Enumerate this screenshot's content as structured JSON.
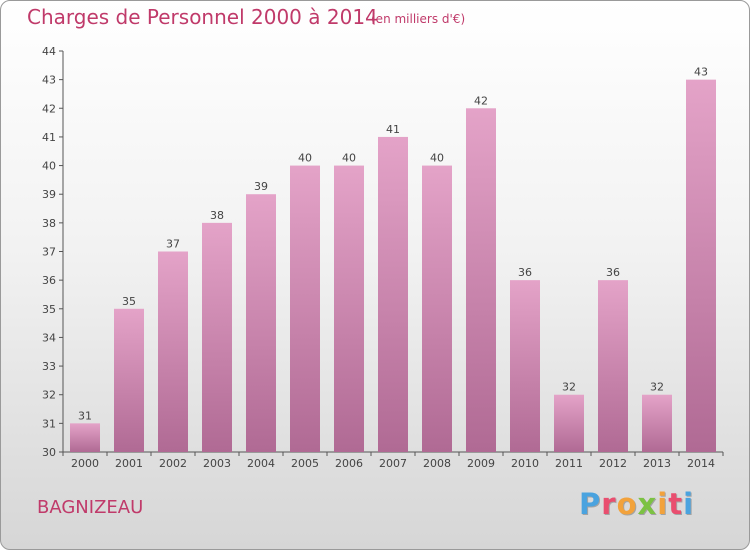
{
  "chart_data": {
    "type": "bar",
    "title": "Charges de Personnel 2000 à 2014",
    "subtitle": "(en milliers d'€)",
    "categories": [
      "2000",
      "2001",
      "2002",
      "2003",
      "2004",
      "2005",
      "2006",
      "2007",
      "2008",
      "2009",
      "2010",
      "2011",
      "2012",
      "2013",
      "2014"
    ],
    "values": [
      31,
      35,
      37,
      38,
      39,
      40,
      40,
      41,
      40,
      42,
      36,
      32,
      36,
      32,
      43
    ],
    "ylim": [
      30,
      44
    ],
    "yticks": [
      30,
      31,
      32,
      33,
      34,
      35,
      36,
      37,
      38,
      39,
      40,
      41,
      42,
      43,
      44
    ],
    "grid": false,
    "bar_color": "#e4a3c8",
    "bar_color_dark": "#b06a94"
  },
  "commune": "BAGNIZEAU",
  "brand": {
    "letters": [
      "P",
      "r",
      "o",
      "x",
      "i",
      "t",
      "i"
    ],
    "colors": [
      "#4aa3df",
      "#e94e6f",
      "#f2a23c",
      "#7cc243",
      "#f2a23c",
      "#e94e6f",
      "#4aa3df"
    ]
  }
}
